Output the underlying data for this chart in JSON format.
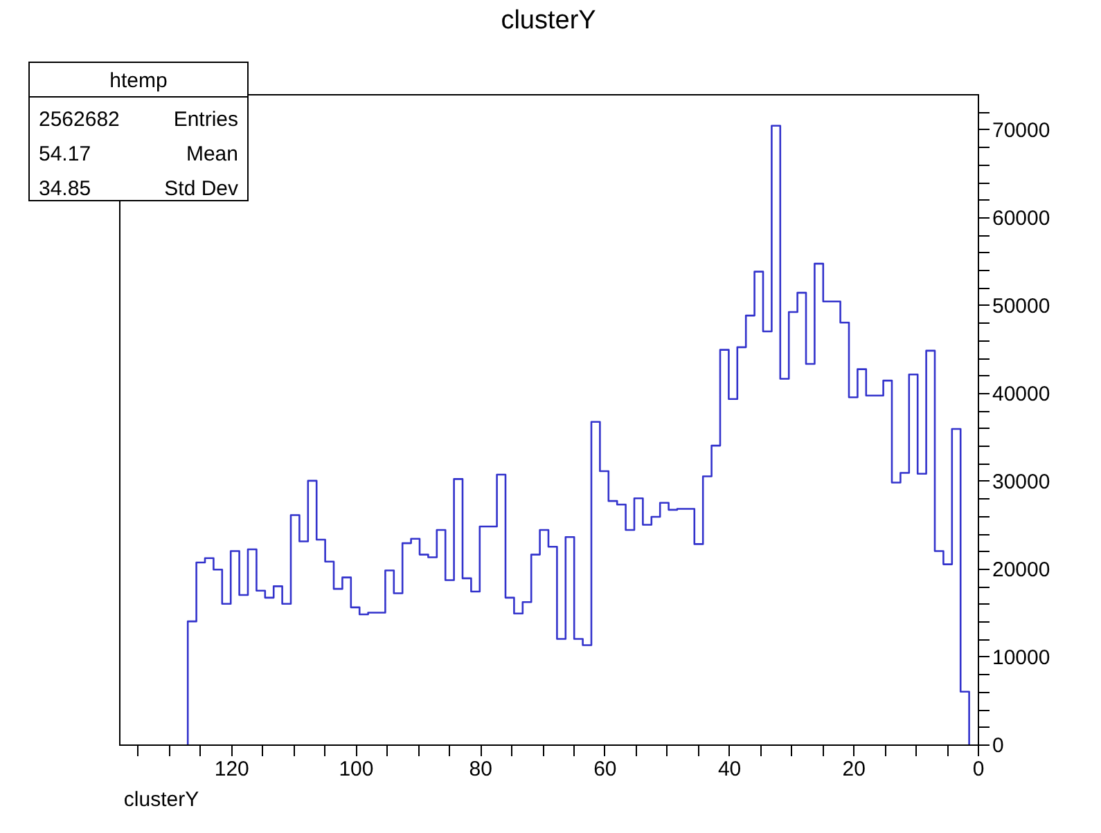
{
  "chart_data": {
    "type": "histogram",
    "title": "clusterY",
    "xlabel": "clusterY",
    "bins": [
      1.38,
      2.76,
      4.14,
      5.52,
      6.9,
      8.28,
      9.66,
      11.04,
      12.42,
      13.8,
      15.18,
      16.56,
      17.94,
      19.32,
      20.7,
      22.08,
      23.46,
      24.84,
      26.22,
      27.6,
      28.98,
      30.36,
      31.74,
      33.12,
      34.5,
      35.88,
      37.26,
      38.64,
      40.02,
      41.4,
      42.78,
      44.16,
      45.54,
      46.92,
      48.3,
      49.68,
      51.06,
      52.44,
      53.82,
      55.2,
      56.58,
      57.96,
      59.34,
      60.72,
      62.1,
      63.48,
      64.86,
      66.24,
      67.62,
      69,
      70.38,
      71.76,
      73.14,
      74.52,
      75.9,
      77.28,
      78.66,
      80.04,
      81.42,
      82.8,
      84.18,
      85.56,
      86.94,
      88.32,
      89.7,
      91.08,
      92.46,
      93.84,
      95.22,
      96.6,
      97.98,
      99.36,
      100.74,
      102.12,
      103.5,
      104.88,
      106.26,
      107.64,
      109.02,
      110.4,
      111.78,
      113.16,
      114.54,
      115.92,
      117.3,
      118.68,
      120.06,
      121.44,
      122.82,
      124.2,
      125.58,
      126.96
    ],
    "values": [
      6000,
      35900,
      20500,
      22000,
      44800,
      30800,
      42100,
      30900,
      29800,
      41400,
      39700,
      39700,
      42700,
      39500,
      48000,
      50400,
      50400,
      54700,
      43300,
      51400,
      49200,
      41600,
      70400,
      47000,
      53800,
      48800,
      45200,
      39300,
      44900,
      34000,
      30500,
      22800,
      26800,
      26800,
      26700,
      27500,
      25900,
      25000,
      28000,
      24400,
      27300,
      27700,
      31100,
      36700,
      11300,
      12000,
      23600,
      12000,
      22500,
      24400,
      21600,
      16200,
      14900,
      16700,
      30700,
      24800,
      24800,
      17400,
      18900,
      30200,
      18700,
      24400,
      21300,
      21600,
      23400,
      22900,
      17200,
      19800,
      15000,
      15000,
      14800,
      15600,
      19000,
      17700,
      20800,
      23300,
      30000,
      23100,
      26100,
      16000,
      18000,
      16700,
      17500,
      22200,
      17000,
      22000,
      16000,
      19900,
      21200,
      20700,
      14000
    ],
    "color": "#3333cc",
    "xlim": [
      138,
      0
    ],
    "xticks": [
      0,
      {
        "value": 5,
        "label": null
      },
      {
        "value": 10,
        "label": null
      },
      {
        "value": 15,
        "label": null
      },
      20,
      {
        "value": 25,
        "label": null
      },
      {
        "value": 30,
        "label": null
      },
      {
        "value": 35,
        "label": null
      },
      40,
      {
        "value": 45,
        "label": null
      },
      {
        "value": 50,
        "label": null
      },
      {
        "value": 55,
        "label": null
      },
      60,
      {
        "value": 65,
        "label": null
      },
      {
        "value": 70,
        "label": null
      },
      {
        "value": 75,
        "label": null
      },
      80,
      {
        "value": 85,
        "label": null
      },
      {
        "value": 90,
        "label": null
      },
      {
        "value": 95,
        "label": null
      },
      100,
      {
        "value": 105,
        "label": null
      },
      {
        "value": 110,
        "label": null
      },
      {
        "value": 115,
        "label": null
      },
      120,
      {
        "value": 125,
        "label": null
      },
      {
        "value": 130,
        "label": null
      },
      {
        "value": 135,
        "label": null
      }
    ],
    "ylim": [
      0,
      74000
    ],
    "yticks": [
      0,
      {
        "value": 2000,
        "label": null
      },
      {
        "value": 4000,
        "label": null
      },
      {
        "value": 6000,
        "label": null
      },
      {
        "value": 8000,
        "label": null
      },
      10000,
      {
        "value": 12000,
        "label": null
      },
      {
        "value": 14000,
        "label": null
      },
      {
        "value": 16000,
        "label": null
      },
      {
        "value": 18000,
        "label": null
      },
      20000,
      {
        "value": 22000,
        "label": null
      },
      {
        "value": 24000,
        "label": null
      },
      {
        "value": 26000,
        "label": null
      },
      {
        "value": 28000,
        "label": null
      },
      30000,
      {
        "value": 32000,
        "label": null
      },
      {
        "value": 34000,
        "label": null
      },
      {
        "value": 36000,
        "label": null
      },
      {
        "value": 38000,
        "label": null
      },
      40000,
      {
        "value": 42000,
        "label": null
      },
      {
        "value": 44000,
        "label": null
      },
      {
        "value": 46000,
        "label": null
      },
      {
        "value": 48000,
        "label": null
      },
      50000,
      {
        "value": 52000,
        "label": null
      },
      {
        "value": 54000,
        "label": null
      },
      {
        "value": 56000,
        "label": null
      },
      {
        "value": 58000,
        "label": null
      },
      60000,
      {
        "value": 62000,
        "label": null
      },
      {
        "value": 64000,
        "label": null
      },
      {
        "value": 66000,
        "label": null
      },
      {
        "value": 68000,
        "label": null
      },
      70000,
      {
        "value": 72000,
        "label": null
      }
    ],
    "annotations": [
      "htemp",
      "Entries",
      "2562682",
      "Mean",
      "54.17",
      "Std Dev",
      "34.85"
    ]
  }
}
